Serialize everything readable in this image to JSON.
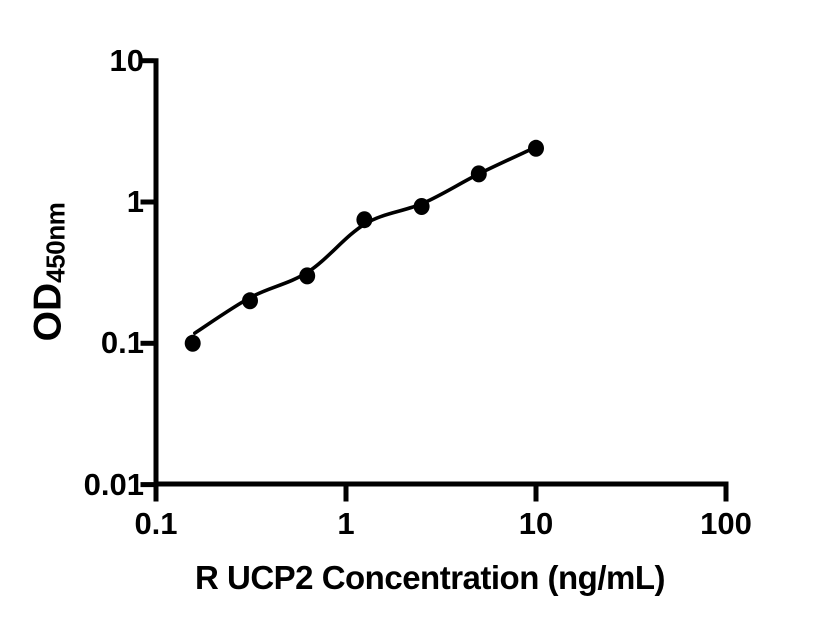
{
  "figure": {
    "background": "#ffffff",
    "accent": "#000000"
  },
  "chart_data": {
    "type": "scatter",
    "title": "",
    "xlabel": "R UCP2 Concentration (ng/mL)",
    "ylabel_main": "OD",
    "ylabel_sub": "450nm",
    "x_scale": "log",
    "y_scale": "log",
    "xlim": [
      0.1,
      100
    ],
    "ylim": [
      0.01,
      10
    ],
    "x_ticks": [
      "0.1",
      "1",
      "10",
      "100"
    ],
    "y_ticks": [
      "10",
      "1",
      "0.1",
      "0.01"
    ],
    "grid": false,
    "legend": false,
    "marker": "filled-circle",
    "marker_color": "#000000",
    "line_color": "#000000",
    "series": [
      {
        "name": "standard-curve-points",
        "points": [
          {
            "x": 0.156,
            "y": 0.1
          },
          {
            "x": 0.3125,
            "y": 0.2
          },
          {
            "x": 0.625,
            "y": 0.3
          },
          {
            "x": 1.25,
            "y": 0.75
          },
          {
            "x": 2.5,
            "y": 0.93
          },
          {
            "x": 5,
            "y": 1.58
          },
          {
            "x": 10,
            "y": 2.4
          }
        ]
      }
    ],
    "fit_curve": [
      {
        "x": 0.16,
        "y": 0.118
      },
      {
        "x": 0.316,
        "y": 0.212
      },
      {
        "x": 0.632,
        "y": 0.32
      },
      {
        "x": 1.26,
        "y": 0.7
      },
      {
        "x": 2.55,
        "y": 0.98
      },
      {
        "x": 5.0,
        "y": 1.58
      },
      {
        "x": 10.0,
        "y": 2.45
      }
    ]
  }
}
